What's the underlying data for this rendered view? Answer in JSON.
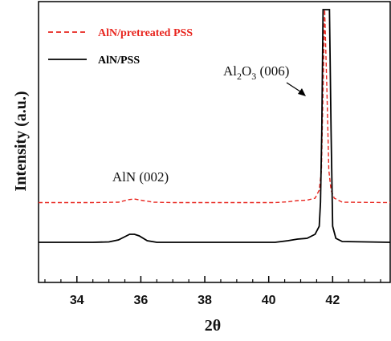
{
  "chart_data": {
    "type": "line",
    "xlabel": "2θ",
    "ylabel": "Intensity (a.u.)",
    "xlim": [
      32.8,
      43.8
    ],
    "x_ticks": [
      34,
      36,
      38,
      40,
      42
    ],
    "x_tick_labels": [
      "34",
      "36",
      "38",
      "40",
      "42"
    ],
    "y_ticks_shown": false,
    "legend_position": "top-left",
    "annotations": [
      {
        "id": "aln",
        "text": "AlN (002)",
        "x": 35.8
      },
      {
        "id": "sapphire",
        "prefix": "Al",
        "sub1": "2",
        "mid": "O",
        "sub2": "3",
        "suffix": " (006)",
        "x": 41.75,
        "arrow": true
      }
    ],
    "series": [
      {
        "name": "AlN/pretreated PSS",
        "color": "#e8261f",
        "style": "dashed",
        "points": [
          [
            32.8,
            0.595
          ],
          [
            34.5,
            0.595
          ],
          [
            35.3,
            0.6
          ],
          [
            35.6,
            0.63
          ],
          [
            35.8,
            0.64
          ],
          [
            36.0,
            0.625
          ],
          [
            36.4,
            0.6
          ],
          [
            37.0,
            0.595
          ],
          [
            40.2,
            0.595
          ],
          [
            40.6,
            0.605
          ],
          [
            40.9,
            0.62
          ],
          [
            41.2,
            0.625
          ],
          [
            41.45,
            0.65
          ],
          [
            41.58,
            0.75
          ],
          [
            41.65,
            1.0
          ],
          [
            41.7,
            2.0
          ],
          [
            41.75,
            3.0
          ],
          [
            41.82,
            2.0
          ],
          [
            41.88,
            1.0
          ],
          [
            41.95,
            0.75
          ],
          [
            42.05,
            0.65
          ],
          [
            42.3,
            0.6
          ],
          [
            43.8,
            0.595
          ]
        ]
      },
      {
        "name": "AlN/PSS",
        "color": "#000000",
        "style": "solid",
        "points": [
          [
            32.8,
            0.1
          ],
          [
            34.5,
            0.1
          ],
          [
            35.0,
            0.105
          ],
          [
            35.3,
            0.13
          ],
          [
            35.5,
            0.17
          ],
          [
            35.65,
            0.2
          ],
          [
            35.8,
            0.2
          ],
          [
            35.95,
            0.18
          ],
          [
            36.2,
            0.12
          ],
          [
            36.5,
            0.1
          ],
          [
            38.0,
            0.1
          ],
          [
            40.2,
            0.1
          ],
          [
            40.6,
            0.12
          ],
          [
            40.9,
            0.14
          ],
          [
            41.2,
            0.15
          ],
          [
            41.45,
            0.2
          ],
          [
            41.58,
            0.3
          ],
          [
            41.62,
            0.6
          ],
          [
            41.66,
            1.5
          ],
          [
            41.7,
            3.0
          ],
          [
            41.75,
            3.0
          ],
          [
            41.9,
            3.0
          ],
          [
            41.95,
            1.5
          ],
          [
            42.0,
            0.3
          ],
          [
            42.1,
            0.15
          ],
          [
            42.3,
            0.11
          ],
          [
            43.8,
            0.1
          ]
        ]
      }
    ]
  }
}
